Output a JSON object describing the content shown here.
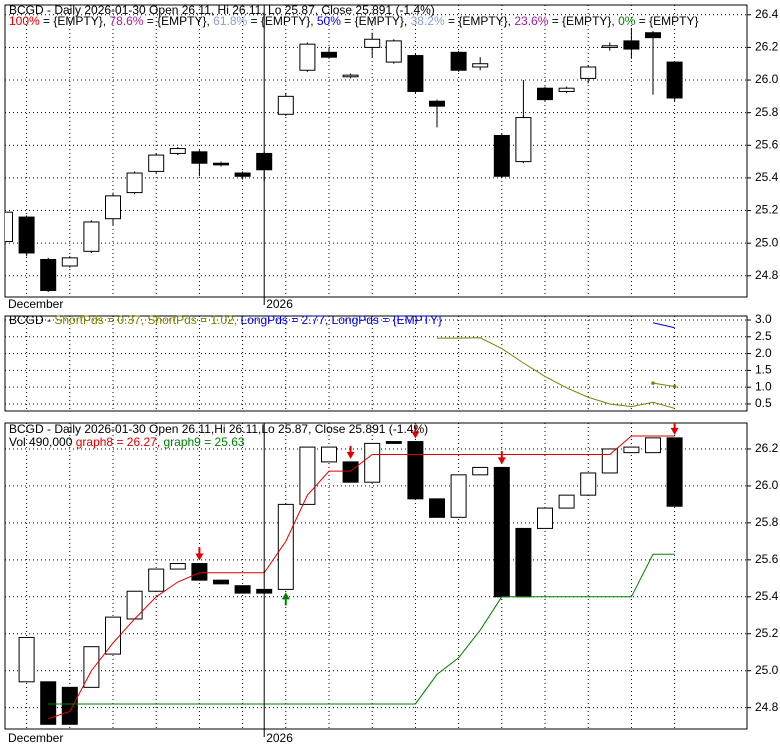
{
  "chart_data": [
    {
      "type": "candlestick",
      "title": "BCGD - Daily 2026-01-30 Open 26.11, Hi 26.11, Lo 25.87, Close 25.891 (-1.4%)",
      "legend": [
        {
          "name": "100%",
          "color": "#e00000",
          "value_label": " = {EMPTY}, "
        },
        {
          "name": "78.6%",
          "color": "#a020a0",
          "value_label": " = {EMPTY}, "
        },
        {
          "name": "61.8%",
          "color": "#8ca0c8",
          "value_label": " = {EMPTY}, "
        },
        {
          "name": "50%",
          "color": "#0000e0",
          "value_label": " = {EMPTY}, "
        },
        {
          "name": "38.2%",
          "color": "#8ca0c8",
          "value_label": " = {EMPTY}, "
        },
        {
          "name": "23.6%",
          "color": "#a020a0",
          "value_label": " = {EMPTY}, "
        },
        {
          "name": "0%",
          "color": "#008000",
          "value_label": " = {EMPTY}"
        }
      ],
      "categories": [
        "December",
        null,
        null,
        null,
        null,
        null,
        null,
        null,
        null,
        null,
        null,
        null,
        "2026",
        null,
        null,
        null,
        null,
        null,
        null,
        null,
        null,
        null,
        null,
        null,
        null,
        null,
        null,
        null,
        null,
        null,
        null,
        null
      ],
      "open": [
        25.01,
        25.16,
        24.9,
        24.86,
        24.95,
        25.15,
        25.31,
        25.44,
        25.55,
        25.56,
        25.49,
        25.43,
        25.55,
        25.79,
        26.06,
        26.17,
        26.02,
        26.2,
        26.11,
        26.15,
        25.87,
        26.17,
        26.08,
        25.66,
        25.5,
        25.95,
        25.93,
        26.01,
        26.2,
        26.24,
        26.29,
        26.11
      ],
      "high": [
        25.2,
        25.17,
        24.91,
        24.92,
        25.14,
        25.31,
        25.44,
        25.55,
        25.59,
        25.57,
        25.5,
        25.44,
        25.56,
        25.92,
        26.23,
        26.2,
        26.04,
        26.29,
        26.25,
        26.16,
        25.88,
        26.18,
        26.14,
        25.67,
        26.0,
        25.96,
        25.96,
        26.09,
        26.23,
        26.32,
        26.3,
        26.11
      ],
      "low": [
        25.0,
        24.92,
        24.7,
        24.85,
        24.94,
        25.11,
        25.3,
        25.43,
        25.54,
        25.41,
        25.47,
        25.39,
        25.38,
        25.78,
        26.05,
        26.13,
        26.01,
        26.14,
        26.1,
        25.92,
        25.71,
        26.05,
        26.06,
        25.4,
        25.49,
        25.87,
        25.92,
        25.98,
        26.18,
        26.13,
        25.91,
        25.87
      ],
      "close": [
        25.19,
        24.94,
        24.71,
        24.91,
        25.13,
        25.29,
        25.43,
        25.54,
        25.58,
        25.49,
        25.48,
        25.41,
        25.45,
        25.9,
        26.22,
        26.14,
        26.03,
        26.25,
        26.24,
        25.93,
        25.84,
        26.06,
        26.1,
        25.41,
        25.77,
        25.88,
        25.95,
        26.08,
        26.21,
        26.19,
        26.26,
        25.89
      ],
      "ylim": [
        24.67,
        26.46
      ],
      "yticks": [
        24.8,
        {
          "value": 25,
          "label": "25.0"
        },
        25.2,
        25.4,
        25.6,
        25.8,
        {
          "value": 26,
          "label": "26.0"
        },
        26.2,
        26.4
      ],
      "grid": true
    },
    {
      "type": "line",
      "title": "BCGD - ",
      "series": [
        {
          "name": "ShortPds",
          "color": "#808000",
          "value_label": " = 0.37, ",
          "values": [
            null,
            null,
            null,
            null,
            null,
            null,
            null,
            null,
            null,
            null,
            null,
            null,
            null,
            null,
            null,
            null,
            null,
            null,
            null,
            null,
            2.46,
            2.46,
            2.47,
            2.15,
            1.72,
            1.32,
            0.98,
            0.7,
            0.5,
            0.42,
            0.55,
            0.37
          ]
        },
        {
          "name": "ShortPds",
          "color": "#808000",
          "value_label": " = 1.02, ",
          "markers": true,
          "values": [
            null,
            null,
            null,
            null,
            null,
            null,
            null,
            null,
            null,
            null,
            null,
            null,
            null,
            null,
            null,
            null,
            null,
            null,
            null,
            null,
            null,
            null,
            null,
            null,
            null,
            null,
            null,
            null,
            null,
            null,
            1.12,
            1.02
          ]
        },
        {
          "name": "LongPds",
          "color": "#0000e0",
          "value_label": " = 2.77, ",
          "values": [
            null,
            null,
            null,
            null,
            null,
            null,
            null,
            null,
            null,
            null,
            null,
            null,
            null,
            null,
            null,
            null,
            null,
            null,
            null,
            null,
            null,
            null,
            null,
            null,
            null,
            null,
            null,
            null,
            null,
            null,
            2.92,
            2.77
          ]
        },
        {
          "name": "LongPds",
          "color": "#0000e0",
          "value_label": " = {EMPTY}"
        }
      ],
      "ylim": [
        0.32,
        3.06
      ],
      "yticks": [
        0.5,
        {
          "value": 1,
          "label": "1.0"
        },
        1.5,
        {
          "value": 2,
          "label": "2.0"
        },
        2.5,
        {
          "value": 3,
          "label": "3.0"
        }
      ],
      "grid": true
    },
    {
      "type": "candlestick",
      "title": "BCGD - Daily 2026-01-30 Open 26.11,Hi 26.11,Lo 25.87, Close 25.891 (-1.4%)",
      "volume_label": "Vol 490,000 ",
      "categories": [
        "December",
        null,
        null,
        null,
        null,
        null,
        null,
        null,
        null,
        null,
        null,
        null,
        "2026",
        null,
        null,
        null,
        null,
        null,
        null,
        null,
        null,
        null,
        null,
        null,
        null,
        null,
        null,
        null,
        null,
        null,
        null,
        null
      ],
      "open": [
        null,
        24.94,
        24.94,
        24.91,
        24.91,
        25.09,
        25.28,
        25.43,
        25.55,
        25.58,
        25.49,
        25.46,
        25.44,
        25.44,
        25.9,
        26.13,
        26.13,
        26.02,
        26.24,
        26.24,
        25.93,
        25.83,
        26.06,
        26.1,
        25.77,
        25.77,
        25.88,
        25.95,
        26.07,
        26.18,
        26.18,
        26.26
      ],
      "close": [
        null,
        25.18,
        24.71,
        24.71,
        25.13,
        25.29,
        25.43,
        25.55,
        25.58,
        25.49,
        25.47,
        25.42,
        25.42,
        25.9,
        26.21,
        26.21,
        26.02,
        26.23,
        26.23,
        25.93,
        25.83,
        26.06,
        26.1,
        25.4,
        25.4,
        25.88,
        25.95,
        26.07,
        26.2,
        26.21,
        26.26,
        25.89
      ],
      "series": [
        {
          "name": "graph8",
          "color": "#e00000",
          "value_label": " = 26.27, ",
          "values": [
            null,
            null,
            24.74,
            24.78,
            25.0,
            25.15,
            25.28,
            25.4,
            25.48,
            25.53,
            25.53,
            25.53,
            25.53,
            25.7,
            25.95,
            26.08,
            26.08,
            26.17,
            26.17,
            26.17,
            26.17,
            26.17,
            26.17,
            26.17,
            26.17,
            26.17,
            26.17,
            26.17,
            26.17,
            26.27,
            26.27,
            26.27
          ]
        },
        {
          "name": "graph9",
          "color": "#008000",
          "value_label": " = 25.63",
          "values": [
            null,
            null,
            24.82,
            24.82,
            24.82,
            24.82,
            24.82,
            24.82,
            24.82,
            24.82,
            24.82,
            24.82,
            24.82,
            24.82,
            24.82,
            24.82,
            24.82,
            24.82,
            24.82,
            24.82,
            24.98,
            25.07,
            25.22,
            25.4,
            25.4,
            25.4,
            25.4,
            25.4,
            25.4,
            25.4,
            25.63,
            25.63
          ]
        }
      ],
      "sell_signals": [
        9,
        16,
        19,
        23,
        31
      ],
      "buy_signals": [
        13
      ],
      "ylim": [
        24.69,
        26.335
      ],
      "yticks": [
        24.8,
        {
          "value": 25,
          "label": "25.0"
        },
        25.2,
        25.4,
        25.6,
        25.8,
        {
          "value": 26,
          "label": "26.0"
        },
        26.2
      ],
      "grid": true
    }
  ]
}
